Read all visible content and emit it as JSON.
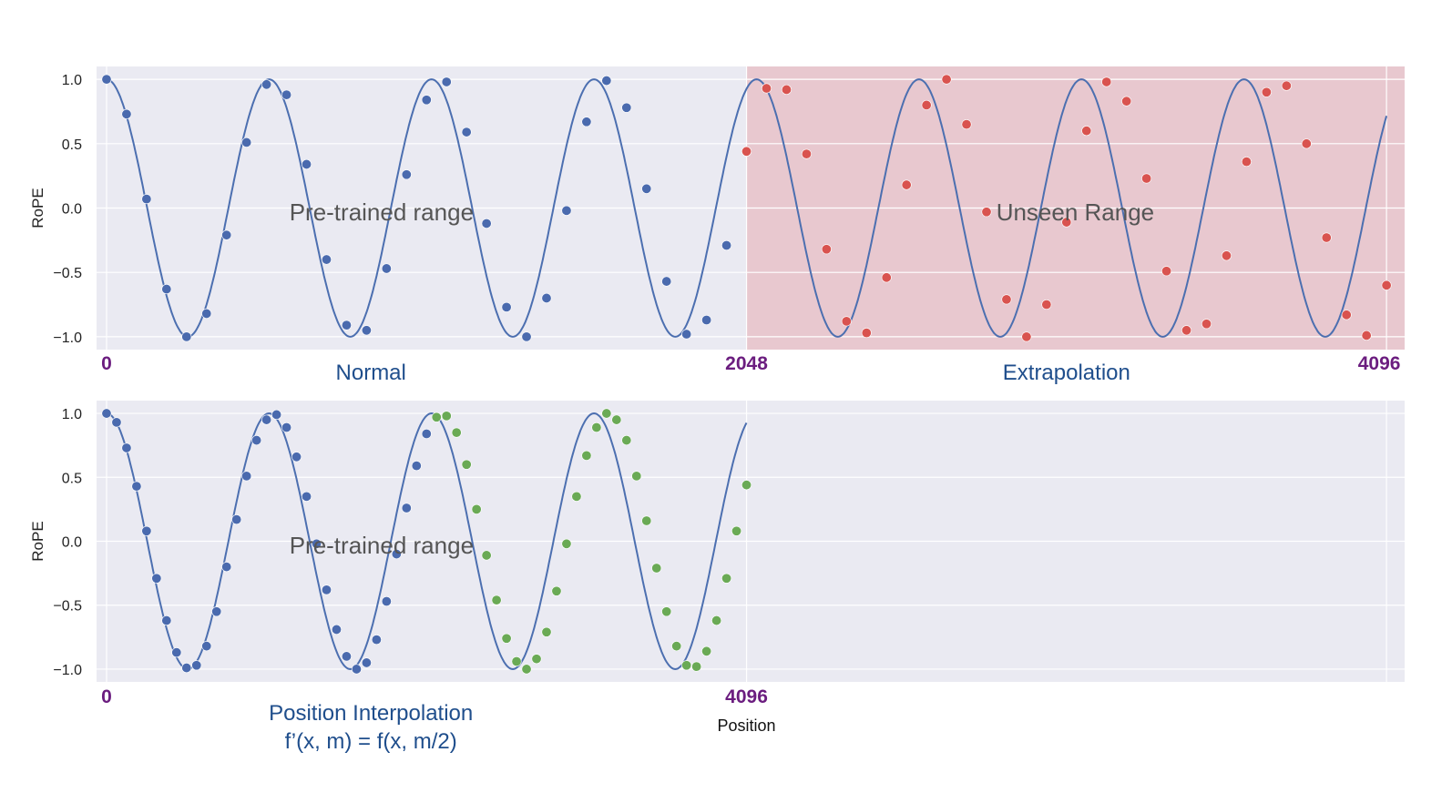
{
  "chart_data": [
    {
      "type": "line",
      "ylabel": "RoPE",
      "xlabel": "",
      "xlim": [
        -32,
        4154
      ],
      "ylim": [
        -1.1,
        1.1
      ],
      "yticks": [
        "1.0",
        "0.5",
        "0.0",
        "−0.5",
        "−1.0"
      ],
      "ytick_values": [
        1.0,
        0.5,
        0.0,
        -0.5,
        -1.0
      ],
      "x_markers": [
        {
          "value": 0,
          "label": "0"
        },
        {
          "value": 2048,
          "label": "2048"
        },
        {
          "value": 4096,
          "label": "4096"
        }
      ],
      "section_labels": [
        {
          "text": "Normal",
          "x": 846
        },
        {
          "text": "Extrapolation",
          "x": 3072
        }
      ],
      "region_labels": [
        {
          "text": "Pre-trained range",
          "x": 880,
          "y": -0.04
        },
        {
          "text": "Unseen Range",
          "x": 3100,
          "y": -0.04
        }
      ],
      "shaded_region": {
        "x": [
          2048,
          4154
        ],
        "color": "#e8c8cf"
      },
      "curve": {
        "function": "cos",
        "period": 520,
        "color": "#4c6fb0",
        "x": [
          0,
          4096
        ]
      },
      "series": [
        {
          "color": "#4a6aae",
          "x": [
            0,
            64,
            128,
            192,
            256,
            320,
            384,
            448,
            512,
            576,
            640,
            704,
            768,
            832,
            896,
            960,
            1024,
            1088,
            1152,
            1216,
            1280,
            1344,
            1408,
            1472,
            1536,
            1600,
            1664,
            1728,
            1792,
            1856,
            1920,
            1984,
            2048
          ],
          "y": [
            1.0,
            0.73,
            0.07,
            -0.63,
            -1.0,
            -0.82,
            -0.21,
            0.51,
            0.96,
            0.88,
            0.34,
            -0.4,
            -0.91,
            -0.95,
            -0.47,
            0.26,
            0.84,
            0.98,
            0.59,
            -0.12,
            -0.77,
            -1.0,
            -0.7,
            -0.02,
            0.67,
            0.99,
            0.78,
            0.15,
            -0.57,
            -0.98,
            -0.87,
            -0.29,
            0.44
          ]
        },
        {
          "color": "#d9534f",
          "x": [
            2048,
            2112,
            2176,
            2240,
            2304,
            2368,
            2432,
            2496,
            2560,
            2624,
            2688,
            2752,
            2816,
            2880,
            2944,
            3008,
            3072,
            3136,
            3200,
            3264,
            3328,
            3392,
            3456,
            3520,
            3584,
            3648,
            3712,
            3776,
            3840,
            3904,
            3968,
            4032,
            4096
          ],
          "y": [
            0.44,
            0.93,
            0.92,
            0.42,
            -0.32,
            -0.88,
            -0.97,
            -0.54,
            0.18,
            0.8,
            1.0,
            0.65,
            -0.03,
            -0.71,
            -1.0,
            -0.75,
            -0.11,
            0.6,
            0.98,
            0.83,
            0.23,
            -0.49,
            -0.95,
            -0.9,
            -0.37,
            0.36,
            0.9,
            0.95,
            0.5,
            -0.23,
            -0.83,
            -0.99,
            -0.6
          ]
        }
      ]
    },
    {
      "type": "line",
      "ylabel": "RoPE",
      "xlabel": "Position",
      "xlim": [
        -32,
        4154
      ],
      "ylim": [
        -1.1,
        1.1
      ],
      "yticks": [
        "1.0",
        "0.5",
        "0.0",
        "−0.5",
        "−1.0"
      ],
      "ytick_values": [
        1.0,
        0.5,
        0.0,
        -0.5,
        -1.0
      ],
      "x_markers": [
        {
          "value": 0,
          "label": "0"
        },
        {
          "value": 2048,
          "label": "4096"
        }
      ],
      "section_labels": [
        {
          "text": "Position Interpolation",
          "x": 846
        },
        {
          "text": "f’(x, m) = f(x, m/2)",
          "x": 846
        }
      ],
      "region_labels": [
        {
          "text": "Pre-trained range",
          "x": 880,
          "y": -0.04
        }
      ],
      "curve": {
        "function": "cos",
        "period": 520,
        "color": "#4c6fb0",
        "x": [
          0,
          2048
        ]
      },
      "series": [
        {
          "color": "#4a6aae",
          "x": [
            0,
            32,
            64,
            96,
            128,
            160,
            192,
            224,
            256,
            288,
            320,
            352,
            384,
            416,
            448,
            480,
            512,
            544,
            576,
            608,
            640,
            672,
            704,
            736,
            768,
            800,
            832,
            864,
            896,
            928,
            960,
            992,
            1024
          ],
          "y": [
            1.0,
            0.93,
            0.73,
            0.43,
            0.08,
            -0.29,
            -0.62,
            -0.87,
            -0.99,
            -0.97,
            -0.82,
            -0.55,
            -0.2,
            0.17,
            0.51,
            0.79,
            0.95,
            0.99,
            0.89,
            0.66,
            0.35,
            -0.02,
            -0.38,
            -0.69,
            -0.9,
            -1.0,
            -0.95,
            -0.77,
            -0.47,
            -0.1,
            0.26,
            0.59,
            0.84
          ]
        },
        {
          "color": "#6aaa55",
          "x": [
            1056,
            1088,
            1120,
            1152,
            1184,
            1216,
            1248,
            1280,
            1312,
            1344,
            1376,
            1408,
            1440,
            1472,
            1504,
            1536,
            1568,
            1600,
            1632,
            1664,
            1696,
            1728,
            1760,
            1792,
            1824,
            1856,
            1888,
            1920,
            1952,
            1984,
            2016,
            2048
          ],
          "y": [
            0.97,
            0.98,
            0.85,
            0.6,
            0.25,
            -0.11,
            -0.46,
            -0.76,
            -0.94,
            -1.0,
            -0.92,
            -0.71,
            -0.39,
            -0.02,
            0.35,
            0.67,
            0.89,
            1.0,
            0.95,
            0.79,
            0.51,
            0.16,
            -0.21,
            -0.55,
            -0.82,
            -0.97,
            -0.98,
            -0.86,
            -0.62,
            -0.29,
            0.08,
            0.44
          ]
        }
      ]
    }
  ]
}
